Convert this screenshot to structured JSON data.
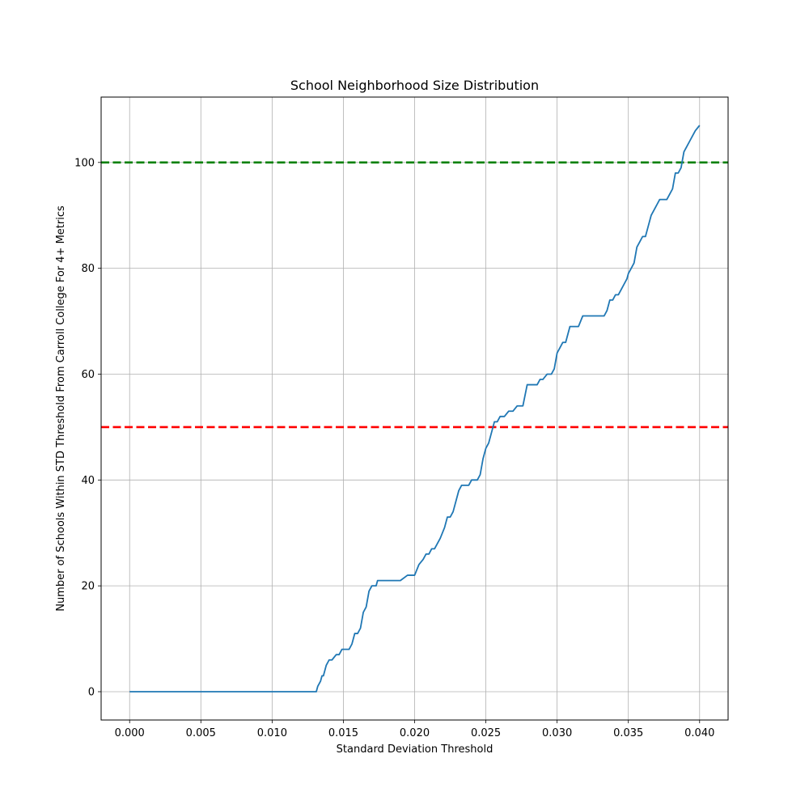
{
  "chart_data": {
    "type": "line",
    "title": "School Neighborhood Size Distribution",
    "xlabel": "Standard Deviation Threshold",
    "ylabel": "Number of Schools Within STD Threshold From Carroll College For 4+ Metrics",
    "xlim": [
      -0.002,
      0.042
    ],
    "ylim": [
      -5.35,
      112.35
    ],
    "xticks": [
      0.0,
      0.005,
      0.01,
      0.015,
      0.02,
      0.025,
      0.03,
      0.035,
      0.04
    ],
    "xtick_labels": [
      "0.000",
      "0.005",
      "0.010",
      "0.015",
      "0.020",
      "0.025",
      "0.030",
      "0.035",
      "0.040"
    ],
    "yticks": [
      0,
      20,
      40,
      60,
      80,
      100
    ],
    "ytick_labels": [
      "0",
      "20",
      "40",
      "60",
      "80",
      "100"
    ],
    "grid": true,
    "series": [
      {
        "color": "#1f77b4",
        "x": [
          0.0,
          0.0131,
          0.0132,
          0.0134,
          0.0135,
          0.0136,
          0.0138,
          0.014,
          0.0141,
          0.0142,
          0.0145,
          0.0147,
          0.0149,
          0.0152,
          0.0154,
          0.0156,
          0.0158,
          0.016,
          0.0162,
          0.0164,
          0.0166,
          0.0168,
          0.017,
          0.0173,
          0.0174,
          0.0176,
          0.0177,
          0.0179,
          0.018,
          0.0182,
          0.0185,
          0.0187,
          0.019,
          0.0195,
          0.0198,
          0.02,
          0.0203,
          0.0206,
          0.0208,
          0.021,
          0.0212,
          0.0214,
          0.0216,
          0.0218,
          0.0221,
          0.0223,
          0.0225,
          0.0227,
          0.0229,
          0.0231,
          0.0233,
          0.0236,
          0.0238,
          0.024,
          0.0244,
          0.0246,
          0.0248,
          0.025,
          0.0252,
          0.0254,
          0.0256,
          0.0258,
          0.026,
          0.0263,
          0.0266,
          0.0269,
          0.0272,
          0.0276,
          0.0279,
          0.0282,
          0.0286,
          0.0288,
          0.029,
          0.0293,
          0.0296,
          0.0298,
          0.03,
          0.0302,
          0.0304,
          0.0306,
          0.0309,
          0.0312,
          0.0315,
          0.0318,
          0.0321,
          0.0324,
          0.0327,
          0.033,
          0.0333,
          0.0335,
          0.0337,
          0.0339,
          0.0341,
          0.0343,
          0.0345,
          0.0347,
          0.0349,
          0.035,
          0.0352,
          0.0354,
          0.0356,
          0.0358,
          0.036,
          0.0362,
          0.0364,
          0.0366,
          0.0368,
          0.037,
          0.0372,
          0.0375,
          0.0377,
          0.0379,
          0.0381,
          0.0383,
          0.0385,
          0.0387,
          0.0389,
          0.0391,
          0.0393,
          0.0395,
          0.0397,
          0.04
        ],
        "y": [
          0,
          0,
          1,
          2,
          3,
          3,
          5,
          6,
          6,
          6,
          7,
          7,
          8,
          8,
          8,
          9,
          11,
          11,
          12,
          15,
          16,
          19,
          20,
          20,
          21,
          21,
          21,
          21,
          21,
          21,
          21,
          21,
          21,
          22,
          22,
          22,
          24,
          25,
          26,
          26,
          27,
          27,
          28,
          29,
          31,
          33,
          33,
          34,
          36,
          38,
          39,
          39,
          39,
          40,
          40,
          41,
          44,
          46,
          47,
          49,
          51,
          51,
          52,
          52,
          53,
          53,
          54,
          54,
          58,
          58,
          58,
          59,
          59,
          60,
          60,
          61,
          64,
          65,
          66,
          66,
          69,
          69,
          69,
          71,
          71,
          71,
          71,
          71,
          71,
          72,
          74,
          74,
          75,
          75,
          76,
          77,
          78,
          79,
          80,
          81,
          84,
          85,
          86,
          86,
          88,
          90,
          91,
          92,
          93,
          93,
          93,
          94,
          95,
          98,
          98,
          99,
          102,
          103,
          104,
          105,
          106,
          107
        ]
      }
    ],
    "reference_lines": [
      {
        "y": 100,
        "color": "#008000",
        "style": "dashed"
      },
      {
        "y": 50,
        "color": "#ff0000",
        "style": "dashed"
      }
    ]
  }
}
